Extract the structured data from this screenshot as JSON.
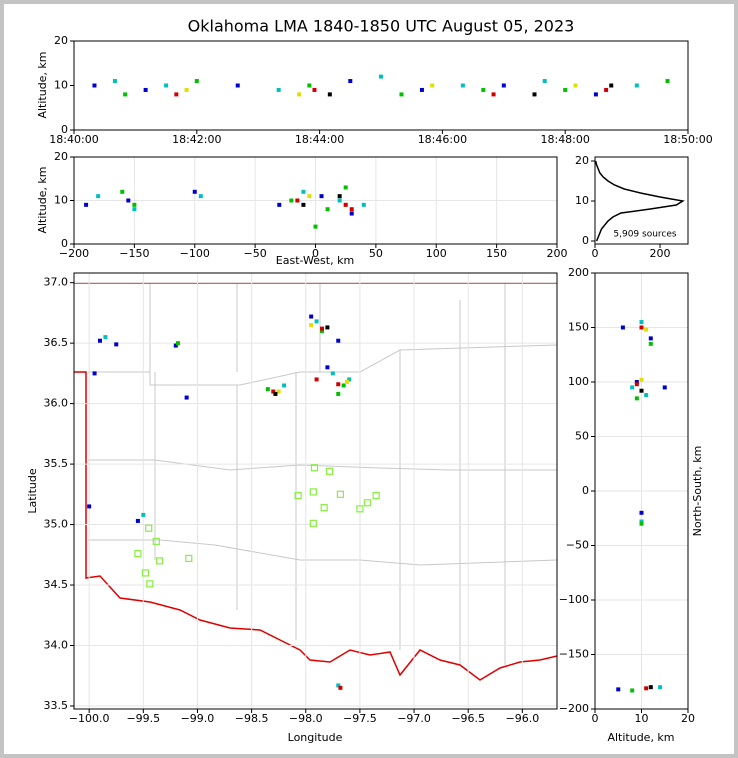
{
  "title": "Oklahoma LMA 1840-1850 UTC August 05, 2023",
  "chart_data": [
    {
      "type": "scatter",
      "ylabel": "Altitude, km",
      "xlim": [
        "18:40:00",
        "18:50:00"
      ],
      "xticks": [
        "18:40:00",
        "18:42:00",
        "18:44:00",
        "18:46:00",
        "18:48:00",
        "18:50:00"
      ],
      "ylim": [
        0,
        20
      ],
      "yticks": [
        0,
        10,
        20
      ],
      "grid": false,
      "series": [
        {
          "color": "#0000cc",
          "x": [
            "18:40:20",
            "18:41:10",
            "18:42:40",
            "18:44:30",
            "18:45:40",
            "18:47:00",
            "18:48:30"
          ],
          "values": [
            10,
            9,
            10,
            11,
            9,
            10,
            8
          ]
        },
        {
          "color": "#00bfbf",
          "x": [
            "18:40:40",
            "18:41:30",
            "18:43:20",
            "18:45:00",
            "18:46:20",
            "18:47:40",
            "18:49:10"
          ],
          "values": [
            11,
            10,
            9,
            12,
            10,
            11,
            10
          ]
        },
        {
          "color": "#00c000",
          "x": [
            "18:40:50",
            "18:42:00",
            "18:43:50",
            "18:45:20",
            "18:46:40",
            "18:48:00",
            "18:49:40"
          ],
          "values": [
            8,
            11,
            10,
            8,
            9,
            9,
            11
          ]
        },
        {
          "color": "#e0e000",
          "x": [
            "18:41:50",
            "18:43:40",
            "18:45:50",
            "18:48:10"
          ],
          "values": [
            9,
            8,
            10,
            10
          ]
        },
        {
          "color": "#d00000",
          "x": [
            "18:41:40",
            "18:43:55",
            "18:46:50",
            "18:48:40"
          ],
          "values": [
            8,
            9,
            8,
            9
          ]
        },
        {
          "color": "#000000",
          "x": [
            "18:44:10",
            "18:47:30",
            "18:48:45"
          ],
          "values": [
            8,
            8,
            10
          ]
        }
      ]
    },
    {
      "type": "scatter",
      "xlabel": "East-West, km",
      "ylabel": "Altitude, km",
      "xlim": [
        -200,
        200
      ],
      "xticks": [
        {
          "value": -200,
          "label": "−200"
        },
        {
          "value": -150,
          "label": "−150"
        },
        {
          "value": -100,
          "label": "−100"
        },
        {
          "value": -50,
          "label": "−50"
        },
        0,
        50,
        100,
        150,
        200
      ],
      "ylim": [
        0,
        20
      ],
      "yticks": [
        0,
        10,
        20
      ],
      "grid": true,
      "series": [
        {
          "color": "#0000cc",
          "x": [
            -190,
            -155,
            -100,
            -30,
            5,
            30
          ],
          "values": [
            9,
            10,
            12,
            9,
            11,
            7
          ]
        },
        {
          "color": "#00bfbf",
          "x": [
            -180,
            -150,
            -95,
            -10,
            20,
            40
          ],
          "values": [
            11,
            8,
            11,
            12,
            10,
            9
          ]
        },
        {
          "color": "#00c000",
          "x": [
            -160,
            -150,
            -20,
            10,
            25,
            0
          ],
          "values": [
            12,
            9,
            10,
            8,
            13,
            4
          ]
        },
        {
          "color": "#e0e000",
          "x": [
            -5,
            25
          ],
          "values": [
            11,
            9
          ]
        },
        {
          "color": "#d00000",
          "x": [
            -15,
            25,
            30
          ],
          "values": [
            10,
            9,
            8
          ]
        },
        {
          "color": "#000000",
          "x": [
            -10,
            20
          ],
          "values": [
            9,
            11
          ]
        }
      ]
    },
    {
      "type": "line",
      "annotation": "5,909 sources",
      "xlim": [
        0,
        286
      ],
      "xticks": [
        0,
        200
      ],
      "ylim": [
        -0.75,
        21
      ],
      "yticks": [
        0,
        10,
        20
      ],
      "grid": false,
      "series": [
        {
          "color": "#000000",
          "x": [
            5,
            10,
            15,
            20,
            30,
            40,
            55,
            80,
            170,
            250,
            270,
            200,
            140,
            90,
            60,
            40,
            25,
            15,
            10,
            5,
            2
          ],
          "values": [
            0,
            1,
            2,
            3,
            4,
            5,
            6,
            7,
            8,
            9,
            10,
            11,
            12,
            13,
            14,
            15,
            16,
            17,
            18,
            19,
            20
          ]
        }
      ]
    },
    {
      "type": "scatter",
      "xlabel": "Longitude",
      "ylabel": "Latitude",
      "xlim": [
        -100.14,
        -95.68
      ],
      "xticks": [
        {
          "value": -100,
          "label": "−100.0"
        },
        {
          "value": -99.5,
          "label": "−99.5"
        },
        {
          "value": -99,
          "label": "−99.0"
        },
        {
          "value": -98.5,
          "label": "−98.5"
        },
        {
          "value": -98,
          "label": "−98.0"
        },
        {
          "value": -97.5,
          "label": "−97.5"
        },
        {
          "value": -97,
          "label": "−97.0"
        },
        {
          "value": -96.5,
          "label": "−96.5"
        },
        {
          "value": -96,
          "label": "−96.0"
        }
      ],
      "ylim": [
        33.475,
        37.08
      ],
      "yticks": [
        {
          "value": 33.5,
          "label": "33.5"
        },
        {
          "value": 34,
          "label": "34.0"
        },
        {
          "value": 34.5,
          "label": "34.5"
        },
        {
          "value": 35,
          "label": "35.0"
        },
        {
          "value": 35.5,
          "label": "35.5"
        },
        {
          "value": 36,
          "label": "36.0"
        },
        {
          "value": 36.5,
          "label": "36.5"
        },
        {
          "value": 37,
          "label": "37.0"
        }
      ],
      "grid": true,
      "series": [
        {
          "color": "#0000cc",
          "x": [
            -99.9,
            -99.75,
            -99.2,
            -97.95,
            -97.8,
            -99.1,
            -100.0,
            -99.55,
            -97.7,
            -99.95
          ],
          "values": [
            36.52,
            36.49,
            36.48,
            36.72,
            36.3,
            36.05,
            35.15,
            35.03,
            36.52,
            36.25
          ]
        },
        {
          "color": "#00bfbf",
          "x": [
            -97.9,
            -97.75,
            -98.2,
            -97.6,
            -99.5,
            -97.7,
            -99.85
          ],
          "values": [
            36.68,
            36.25,
            36.15,
            36.2,
            35.08,
            33.67,
            36.55
          ]
        },
        {
          "color": "#00c000",
          "x": [
            -97.85,
            -97.7,
            -98.35,
            -97.65,
            -99.18
          ],
          "values": [
            36.6,
            36.08,
            36.12,
            36.15,
            36.5
          ]
        },
        {
          "color": "#e0e000",
          "x": [
            -97.95,
            -98.25,
            -97.62
          ],
          "values": [
            36.65,
            36.1,
            36.18
          ]
        },
        {
          "color": "#d00000",
          "x": [
            -97.85,
            -98.3,
            -97.7,
            -97.9,
            -97.68
          ],
          "values": [
            36.62,
            36.1,
            36.16,
            36.2,
            33.65
          ]
        },
        {
          "color": "#000000",
          "x": [
            -97.8,
            -98.28
          ],
          "values": [
            36.63,
            36.08
          ]
        },
        {
          "color": "#88ee44",
          "marker": "square-open",
          "x": [
            -97.92,
            -97.78,
            -98.07,
            -97.93,
            -97.68,
            -97.35,
            -97.43,
            -97.83,
            -97.5,
            -97.93,
            -99.45,
            -99.38,
            -99.55,
            -99.35,
            -99.08,
            -99.48,
            -99.44
          ],
          "values": [
            35.47,
            35.44,
            35.24,
            35.27,
            35.25,
            35.24,
            35.18,
            35.14,
            35.13,
            35.01,
            34.97,
            34.86,
            34.76,
            34.7,
            34.72,
            34.6,
            34.51
          ]
        }
      ]
    },
    {
      "type": "scatter",
      "xlabel": "Altitude, km",
      "ylabel": "North-South, km",
      "xlim": [
        0,
        20
      ],
      "xticks": [
        0,
        10,
        20
      ],
      "ylim": [
        -200,
        200
      ],
      "yticks": [
        {
          "value": -200,
          "label": "−200"
        },
        {
          "value": -150,
          "label": "−150"
        },
        {
          "value": -100,
          "label": "−100"
        },
        {
          "value": -50,
          "label": "−50"
        },
        0,
        50,
        100,
        150,
        200
      ],
      "grid": true,
      "series": [
        {
          "color": "#0000cc",
          "x": [
            6,
            12,
            9,
            10,
            5,
            15
          ],
          "values": [
            150,
            140,
            100,
            -20,
            -182,
            95
          ]
        },
        {
          "color": "#00bfbf",
          "x": [
            10,
            8,
            11,
            10,
            14
          ],
          "values": [
            155,
            95,
            88,
            -28,
            -180
          ]
        },
        {
          "color": "#00c000",
          "x": [
            12,
            9,
            10,
            8
          ],
          "values": [
            135,
            85,
            -30,
            -183
          ]
        },
        {
          "color": "#e0e000",
          "x": [
            11,
            10
          ],
          "values": [
            148,
            102
          ]
        },
        {
          "color": "#d00000",
          "x": [
            10,
            9,
            11
          ],
          "values": [
            150,
            98,
            -181
          ]
        },
        {
          "color": "#000000",
          "x": [
            12,
            10
          ],
          "values": [
            -180,
            92
          ]
        }
      ]
    }
  ]
}
